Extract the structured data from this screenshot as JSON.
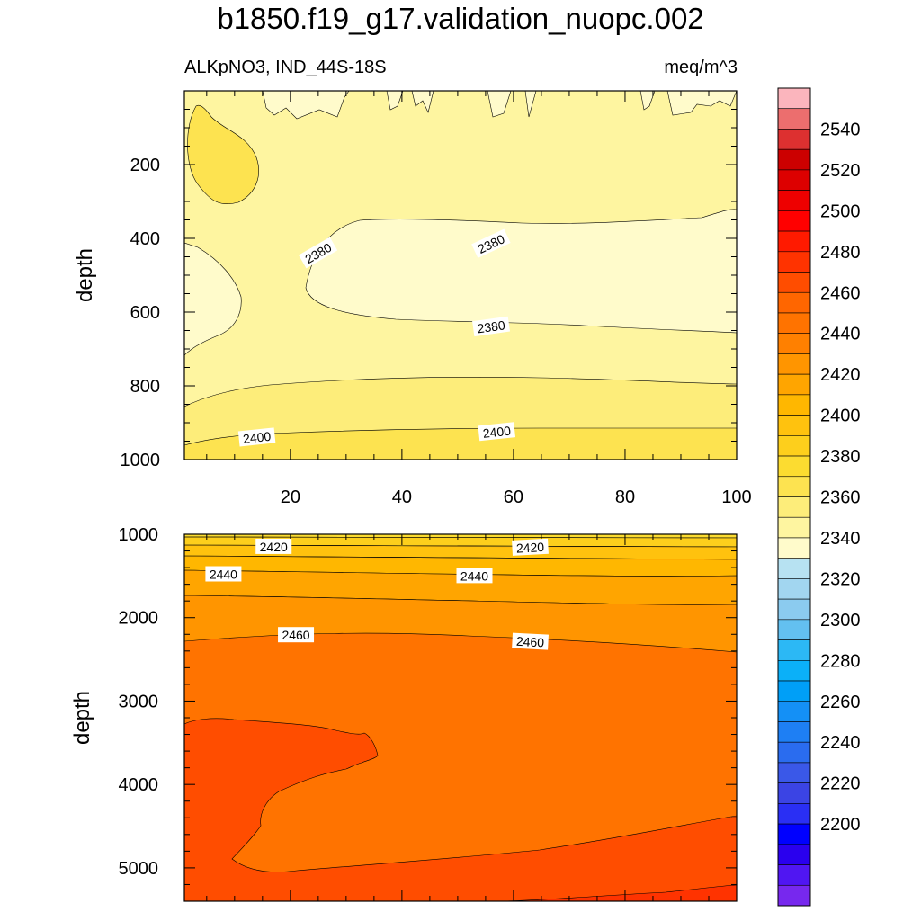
{
  "title": "b1850.f19_g17.validation_nuopc.002",
  "left_string": "ALKpNO3, IND_44S-18S",
  "right_string": "meq/m^3",
  "chart_data": [
    {
      "type": "contour",
      "panel": "upper",
      "ylabel": "depth",
      "xlabel": "",
      "x_ticks": [
        20,
        40,
        60,
        80,
        100
      ],
      "y_ticks": [
        200,
        400,
        600,
        800,
        1000
      ],
      "xlim": [
        1,
        100
      ],
      "ylim": [
        1000,
        0
      ],
      "contour_labels": [
        {
          "text": "2380",
          "x": 25,
          "y": 440
        },
        {
          "text": "2380",
          "x": 56,
          "y": 415
        },
        {
          "text": "2380",
          "x": 56,
          "y": 640
        },
        {
          "text": "2400",
          "x": 14,
          "y": 940
        },
        {
          "text": "2400",
          "x": 57,
          "y": 925
        }
      ],
      "regions": [
        {
          "value": 2380,
          "note": "lightest yellow, x 22-100, depth 330-650"
        },
        {
          "value": 2390,
          "note": "pale yellow background band"
        },
        {
          "value": 2400,
          "note": "yellow band, depth 800-1000"
        },
        {
          "value": 2410,
          "note": "blob near x 3-14, depth 100-320"
        }
      ]
    },
    {
      "type": "contour",
      "panel": "lower",
      "ylabel": "depth",
      "xlabel": "",
      "y_ticks": [
        1000,
        2000,
        3000,
        4000,
        5000
      ],
      "xlim": [
        1,
        100
      ],
      "ylim": [
        1000,
        5400
      ],
      "contour_labels": [
        {
          "text": "2420",
          "x": 17,
          "y": 1150
        },
        {
          "text": "2420",
          "x": 63,
          "y": 1160
        },
        {
          "text": "2440",
          "x": 8,
          "y": 1480
        },
        {
          "text": "2440",
          "x": 53,
          "y": 1500
        },
        {
          "text": "2460",
          "x": 21,
          "y": 2210
        },
        {
          "text": "2460",
          "x": 63,
          "y": 2290
        }
      ]
    }
  ],
  "colorbar": {
    "labels": [
      "2540",
      "2520",
      "2500",
      "2480",
      "2460",
      "2440",
      "2420",
      "2400",
      "2380",
      "2360",
      "2340",
      "2320",
      "2300",
      "2280",
      "2260",
      "2240",
      "2220",
      "2200"
    ],
    "colors": [
      "#fbb5bd",
      "#ec6e6e",
      "#dd3030",
      "#cc0000",
      "#dd0000",
      "#ee0000",
      "#ff0000",
      "#ff1a00",
      "#ff3300",
      "#ff4d00",
      "#ff6600",
      "#ff7300",
      "#ff8000",
      "#ff9500",
      "#ffa500",
      "#ffb700",
      "#ffc20e",
      "#fdcf1c",
      "#fcdc30",
      "#fde350",
      "#fded7a",
      "#fef5a0",
      "#fffbcb",
      "#b7e2f2",
      "#a2d6f0",
      "#8bcbef",
      "#63c0f0",
      "#2cb8f5",
      "#0bb0f8",
      "#009ff7",
      "#1490f6",
      "#1e7ff4",
      "#2a6cef",
      "#3a58e8",
      "#3b44e4",
      "#2a2ff4",
      "#0000ff",
      "#2a00ee",
      "#5016f2",
      "#7728ee"
    ]
  }
}
